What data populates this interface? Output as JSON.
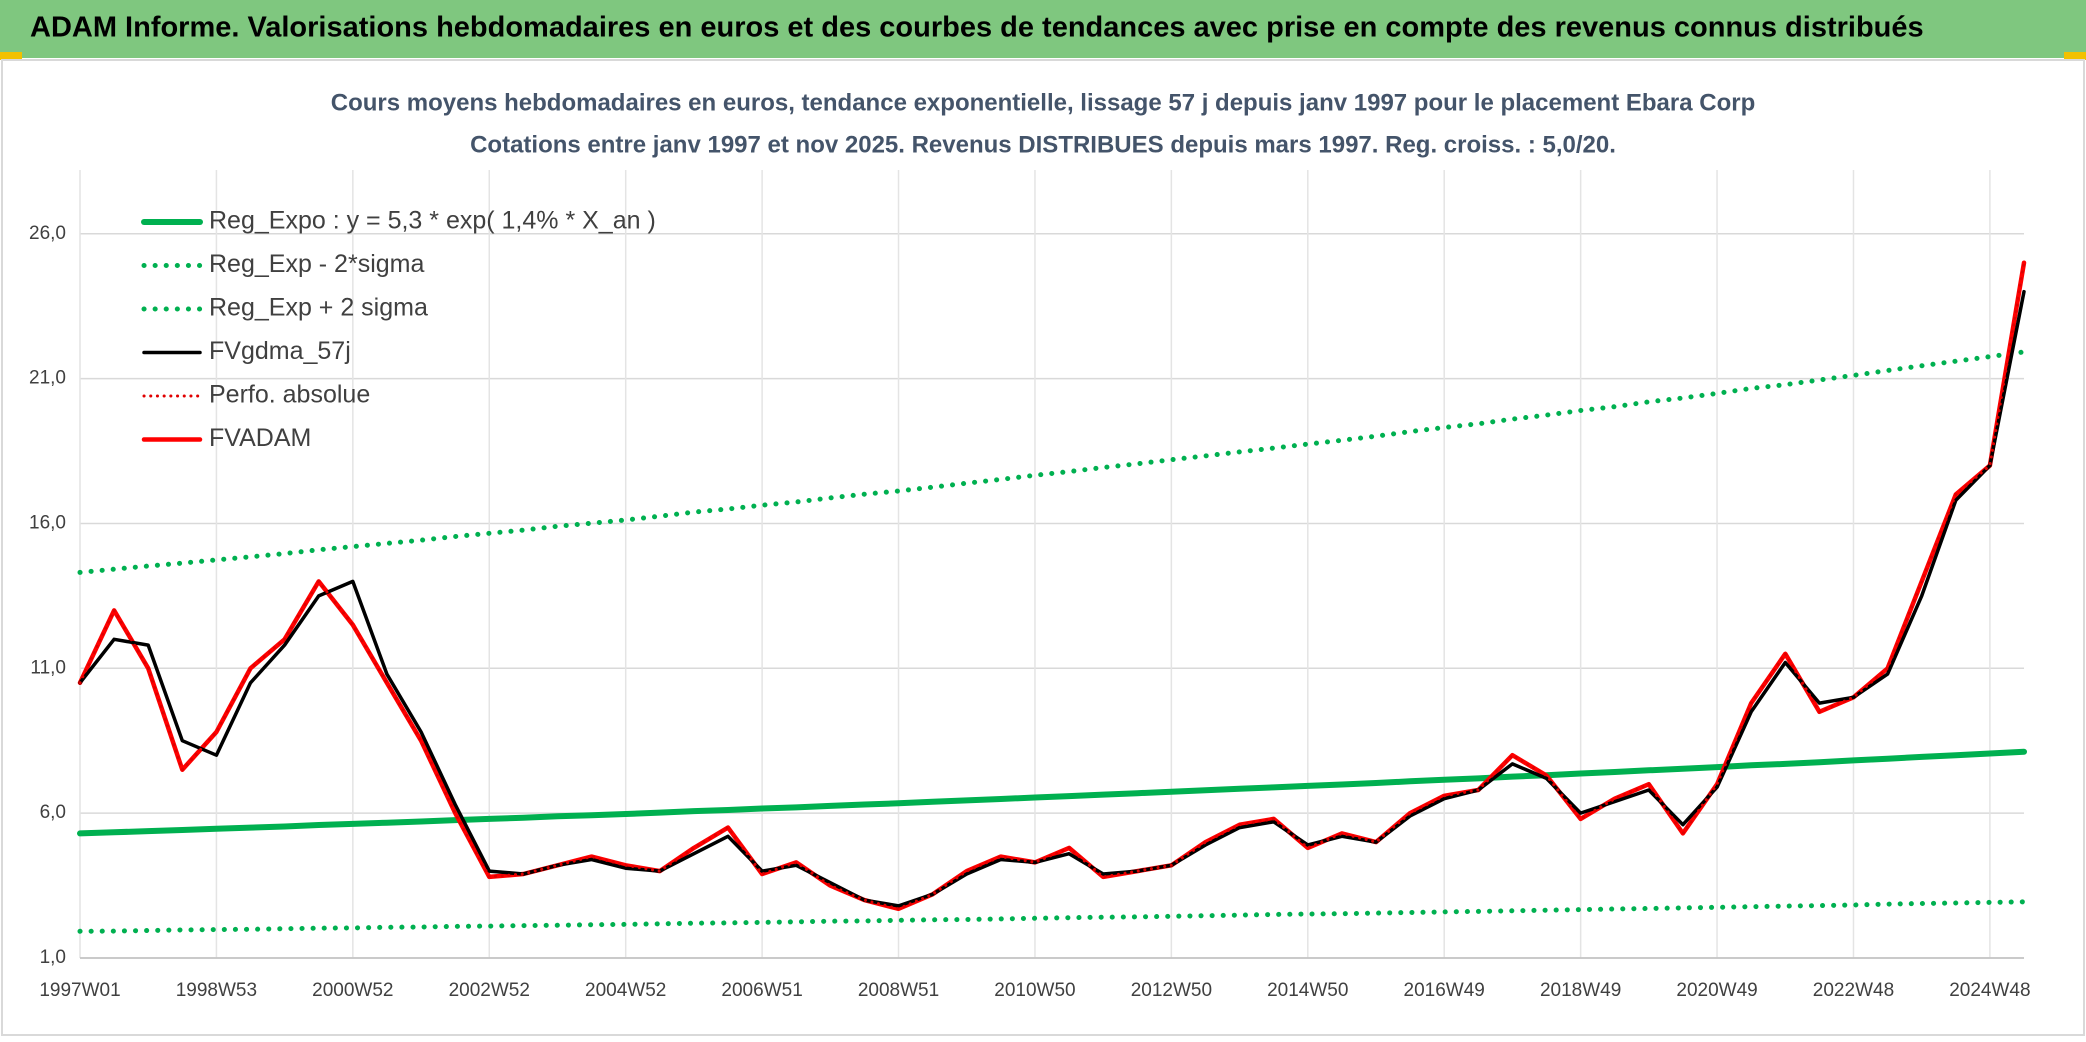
{
  "chart_data": {
    "type": "line",
    "title": "ADAM Informe. Valorisations hebdomadaires en euros et des courbes de tendances avec prise en compte des revenus connus distribués",
    "subtitle": [
      "Cours moyens hebdomadaires en euros, tendance exponentielle, lissage 57 j depuis janv 1997 pour le placement Ebara Corp",
      "Cotations entre janv 1997 et nov 2025. Revenus DISTRIBUES depuis mars 1997. Reg. croiss. : 5,0/20."
    ],
    "categories": [
      "1997W01",
      null,
      null,
      null,
      "1998W53",
      null,
      null,
      null,
      "2000W52",
      null,
      null,
      null,
      "2002W52",
      null,
      null,
      null,
      "2004W52",
      null,
      null,
      null,
      "2006W51",
      null,
      null,
      null,
      "2008W51",
      null,
      null,
      null,
      "2010W50",
      null,
      null,
      null,
      "2012W50",
      null,
      null,
      null,
      "2014W50",
      null,
      null,
      null,
      "2016W49",
      null,
      null,
      null,
      "2018W49",
      null,
      null,
      null,
      "2020W49",
      null,
      null,
      null,
      "2022W48",
      null,
      null,
      null,
      "2024W48",
      null
    ],
    "ylim": [
      1,
      28.2
    ],
    "yticks": [
      {
        "value": 1,
        "label": "1,0"
      },
      {
        "value": 6,
        "label": "6,0"
      },
      {
        "value": 11,
        "label": "11,0"
      },
      {
        "value": 16,
        "label": "16,0"
      },
      {
        "value": 21,
        "label": "21,0"
      },
      {
        "value": 26,
        "label": "26,0"
      }
    ],
    "grid": true,
    "legend": "top-left",
    "series": [
      {
        "name": "Reg_Expo : y = 5,3 * exp( 1,4% *  X_an )",
        "color": "#00b050",
        "style": "solid",
        "values": [
          5.3,
          5.34,
          5.38,
          5.42,
          5.46,
          5.5,
          5.54,
          5.59,
          5.63,
          5.67,
          5.71,
          5.76,
          5.8,
          5.84,
          5.89,
          5.93,
          5.97,
          6.02,
          6.07,
          6.11,
          6.16,
          6.2,
          6.25,
          6.3,
          6.34,
          6.39,
          6.44,
          6.49,
          6.54,
          6.59,
          6.64,
          6.69,
          6.74,
          6.79,
          6.84,
          6.89,
          6.94,
          6.99,
          7.04,
          7.1,
          7.15,
          7.2,
          7.26,
          7.31,
          7.37,
          7.42,
          7.48,
          7.53,
          7.59,
          7.65,
          7.7,
          7.76,
          7.82,
          7.88,
          7.94,
          8.0,
          8.06,
          8.12
        ]
      },
      {
        "name": "Reg_Exp - 2*sigma",
        "color": "#00b050",
        "style": "dotted",
        "values": [
          1.92,
          1.93,
          1.95,
          1.97,
          1.98,
          1.99,
          2.01,
          2.03,
          2.04,
          2.06,
          2.07,
          2.09,
          2.1,
          2.12,
          2.13,
          2.15,
          2.16,
          2.18,
          2.2,
          2.21,
          2.23,
          2.25,
          2.27,
          2.28,
          2.3,
          2.32,
          2.33,
          2.35,
          2.37,
          2.39,
          2.41,
          2.42,
          2.44,
          2.46,
          2.48,
          2.5,
          2.52,
          2.53,
          2.55,
          2.57,
          2.59,
          2.61,
          2.63,
          2.65,
          2.67,
          2.69,
          2.71,
          2.73,
          2.75,
          2.77,
          2.79,
          2.81,
          2.83,
          2.86,
          2.88,
          2.9,
          2.92,
          2.94
        ]
      },
      {
        "name": "Reg_Exp + 2 sigma",
        "color": "#00b050",
        "style": "dotted",
        "values": [
          14.31,
          14.42,
          14.53,
          14.63,
          14.74,
          14.85,
          14.96,
          15.09,
          15.2,
          15.31,
          15.42,
          15.55,
          15.66,
          15.77,
          15.9,
          16.01,
          16.12,
          16.25,
          16.39,
          16.5,
          16.63,
          16.74,
          16.88,
          17.01,
          17.12,
          17.25,
          17.39,
          17.52,
          17.66,
          17.79,
          17.93,
          18.06,
          18.2,
          18.33,
          18.47,
          18.6,
          18.74,
          18.87,
          19.01,
          19.17,
          19.31,
          19.44,
          19.6,
          19.74,
          19.9,
          20.03,
          20.2,
          20.33,
          20.49,
          20.66,
          20.79,
          20.95,
          21.11,
          21.28,
          21.44,
          21.6,
          21.76,
          21.92
        ]
      },
      {
        "name": "FVgdma_57j",
        "color": "#000000",
        "style": "solid",
        "values": [
          10.5,
          12.0,
          11.8,
          8.5,
          8.0,
          10.5,
          11.8,
          13.5,
          14.0,
          10.8,
          8.8,
          6.3,
          4.0,
          3.9,
          4.2,
          4.4,
          4.1,
          4.0,
          4.6,
          5.2,
          4.0,
          4.2,
          3.6,
          3.0,
          2.8,
          3.2,
          3.9,
          4.4,
          4.3,
          4.6,
          3.9,
          4.0,
          4.2,
          4.9,
          5.5,
          5.7,
          4.9,
          5.2,
          5.0,
          5.9,
          6.5,
          6.8,
          7.7,
          7.2,
          6.0,
          6.4,
          6.8,
          5.6,
          6.9,
          9.5,
          11.2,
          9.8,
          10.0,
          10.8,
          13.5,
          16.8,
          18.0,
          24.0
        ]
      },
      {
        "name": "Perfo. absolue",
        "color": "#e00000",
        "style": "dotted",
        "values": [
          10.5,
          13.0,
          11.0,
          7.5,
          8.8,
          11.0,
          12.0,
          14.0,
          12.5,
          10.5,
          8.5,
          6.0,
          3.8,
          3.9,
          4.2,
          4.5,
          4.2,
          4.0,
          4.8,
          5.5,
          3.9,
          4.3,
          3.5,
          3.0,
          2.7,
          3.2,
          4.0,
          4.5,
          4.3,
          4.8,
          3.8,
          4.0,
          4.2,
          5.0,
          5.6,
          5.8,
          4.8,
          5.3,
          5.0,
          6.0,
          6.6,
          6.8,
          8.0,
          7.3,
          5.8,
          6.5,
          7.0,
          5.3,
          7.0,
          9.8,
          11.5,
          9.5,
          10.0,
          11.0,
          14.0,
          17.0,
          18.0,
          25.0
        ]
      },
      {
        "name": "FVADAM",
        "color": "#ff0000",
        "style": "solid",
        "values": [
          10.5,
          13.0,
          11.0,
          7.5,
          8.8,
          11.0,
          12.0,
          14.0,
          12.5,
          10.5,
          8.5,
          6.0,
          3.8,
          3.9,
          4.2,
          4.5,
          4.2,
          4.0,
          4.8,
          5.5,
          3.9,
          4.3,
          3.5,
          3.0,
          2.7,
          3.2,
          4.0,
          4.5,
          4.3,
          4.8,
          3.8,
          4.0,
          4.2,
          5.0,
          5.6,
          5.8,
          4.8,
          5.3,
          5.0,
          6.0,
          6.6,
          6.8,
          8.0,
          7.3,
          5.8,
          6.5,
          7.0,
          5.3,
          7.0,
          9.8,
          11.5,
          9.5,
          10.0,
          11.0,
          14.0,
          17.0,
          18.0,
          25.0
        ]
      }
    ]
  }
}
